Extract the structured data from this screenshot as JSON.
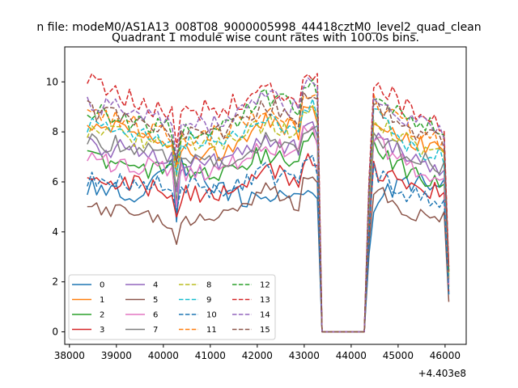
{
  "suptitle": "n file: modeM0/AS1A13_008T08_9000005998_44418cztM0_level2_quad_clean",
  "chart_data": {
    "type": "line",
    "title": "Quadrant 1 module wise count rates with 100.0s bins.",
    "xlabel": "",
    "ylabel": "",
    "x_offset_label": "+4.403e8",
    "xlim": [
      37900,
      46450
    ],
    "ylim": [
      -0.5,
      11.4
    ],
    "x_ticks": [
      38000,
      39000,
      40000,
      41000,
      42000,
      43000,
      44000,
      45000,
      46000
    ],
    "y_ticks": [
      0,
      2,
      4,
      6,
      8,
      10
    ],
    "x_tick_labels": [
      "38000",
      "39000",
      "40000",
      "41000",
      "42000",
      "43000",
      "44000",
      "45000",
      "46000"
    ],
    "y_tick_labels": [
      "0",
      "2",
      "4",
      "6",
      "8",
      "10"
    ],
    "grid": false,
    "legend_position": "lower-left",
    "legend_columns": 4,
    "x_segments": [
      {
        "start": 38380,
        "end": 43280,
        "step": 100
      },
      {
        "start": 43380,
        "end": 44280,
        "step": 300
      },
      {
        "start": 44380,
        "end": 46080,
        "step": 100
      }
    ],
    "series": [
      {
        "name": "0",
        "color": "#1f77b4",
        "dash": "solid",
        "levels": [
          5.9,
          5.5,
          6.8,
          5.8,
          5.0,
          6.2
        ],
        "dip": 4.4,
        "noise": 0.42,
        "end": 1.5
      },
      {
        "name": "1",
        "color": "#ff7f0e",
        "dash": "solid",
        "levels": [
          8.4,
          8.0,
          7.3,
          7.2,
          8.5,
          7.9
        ],
        "dip": 6.4,
        "noise": 0.38,
        "end": 2.2
      },
      {
        "name": "2",
        "color": "#2ca02c",
        "dash": "solid",
        "levels": [
          7.0,
          6.6,
          6.4,
          6.3,
          7.2,
          6.5
        ],
        "dip": 5.2,
        "noise": 0.4,
        "end": 1.8
      },
      {
        "name": "3",
        "color": "#d62728",
        "dash": "solid",
        "levels": [
          6.0,
          5.9,
          5.5,
          5.5,
          6.4,
          6.0
        ],
        "dip": 4.6,
        "noise": 0.38,
        "end": 1.6
      },
      {
        "name": "4",
        "color": "#9467bd",
        "dash": "solid",
        "levels": [
          7.5,
          7.2,
          6.8,
          6.8,
          7.8,
          7.1
        ],
        "dip": 5.6,
        "noise": 0.4,
        "end": 2.0
      },
      {
        "name": "5",
        "color": "#8c564b",
        "dash": "solid",
        "levels": [
          5.0,
          4.7,
          4.3,
          4.6,
          5.7,
          4.9
        ],
        "dip": 3.5,
        "noise": 0.3,
        "end": 1.2
      },
      {
        "name": "6",
        "color": "#e377c2",
        "dash": "solid",
        "levels": [
          6.8,
          6.7,
          6.4,
          6.5,
          7.6,
          6.8
        ],
        "dip": 5.0,
        "noise": 0.4,
        "end": 1.9
      },
      {
        "name": "7",
        "color": "#7f7f7f",
        "dash": "solid",
        "levels": [
          7.6,
          7.4,
          7.0,
          6.8,
          7.7,
          7.2
        ],
        "dip": 5.8,
        "noise": 0.4,
        "end": 2.1
      },
      {
        "name": "8",
        "color": "#bcbd22",
        "dash": "dashed",
        "levels": [
          8.0,
          7.8,
          7.4,
          7.5,
          8.4,
          7.7
        ],
        "dip": 6.2,
        "noise": 0.4,
        "end": 2.2
      },
      {
        "name": "9",
        "color": "#17becf",
        "dash": "dashed",
        "levels": [
          8.2,
          8.0,
          7.6,
          7.7,
          8.6,
          7.6
        ],
        "dip": 6.3,
        "noise": 0.4,
        "end": 2.3
      },
      {
        "name": "10",
        "color": "#1f77b4",
        "dash": "dashed",
        "levels": [
          6.2,
          6.0,
          5.9,
          5.5,
          6.4,
          5.7
        ],
        "dip": 4.8,
        "noise": 0.4,
        "end": 1.5
      },
      {
        "name": "11",
        "color": "#ff7f0e",
        "dash": "dashed",
        "levels": [
          8.7,
          8.3,
          7.8,
          7.9,
          9.0,
          8.3
        ],
        "dip": 6.6,
        "noise": 0.4,
        "end": 2.4
      },
      {
        "name": "12",
        "color": "#2ca02c",
        "dash": "dashed",
        "levels": [
          8.8,
          8.4,
          8.0,
          8.0,
          9.4,
          8.8
        ],
        "dip": 6.8,
        "noise": 0.4,
        "end": 2.4
      },
      {
        "name": "13",
        "color": "#d62728",
        "dash": "dashed",
        "levels": [
          10.0,
          9.2,
          8.8,
          8.9,
          9.8,
          9.1
        ],
        "dip": 7.4,
        "noise": 0.45,
        "end": 2.6
      },
      {
        "name": "14",
        "color": "#9467bd",
        "dash": "dashed",
        "levels": [
          9.2,
          8.8,
          8.3,
          8.3,
          9.4,
          8.7
        ],
        "dip": 7.0,
        "noise": 0.4,
        "end": 2.5
      },
      {
        "name": "15",
        "color": "#8c564b",
        "dash": "dashed",
        "levels": [
          8.9,
          8.5,
          8.0,
          8.0,
          9.1,
          8.3
        ],
        "dip": 6.8,
        "noise": 0.4,
        "end": 2.4
      }
    ]
  }
}
